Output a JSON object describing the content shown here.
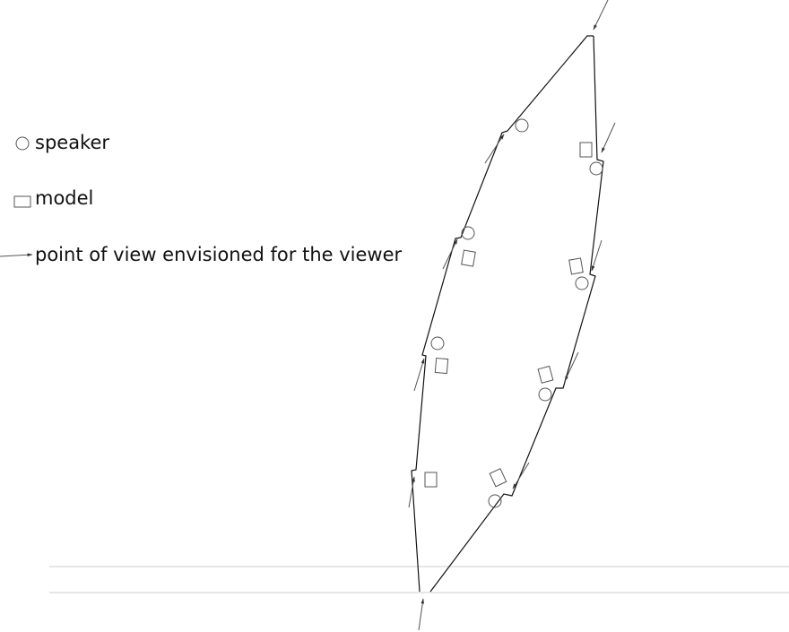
{
  "legend": {
    "items": [
      {
        "label": "speaker"
      },
      {
        "label": "model"
      },
      {
        "label": "point of view envisioned for the viewer"
      }
    ]
  }
}
